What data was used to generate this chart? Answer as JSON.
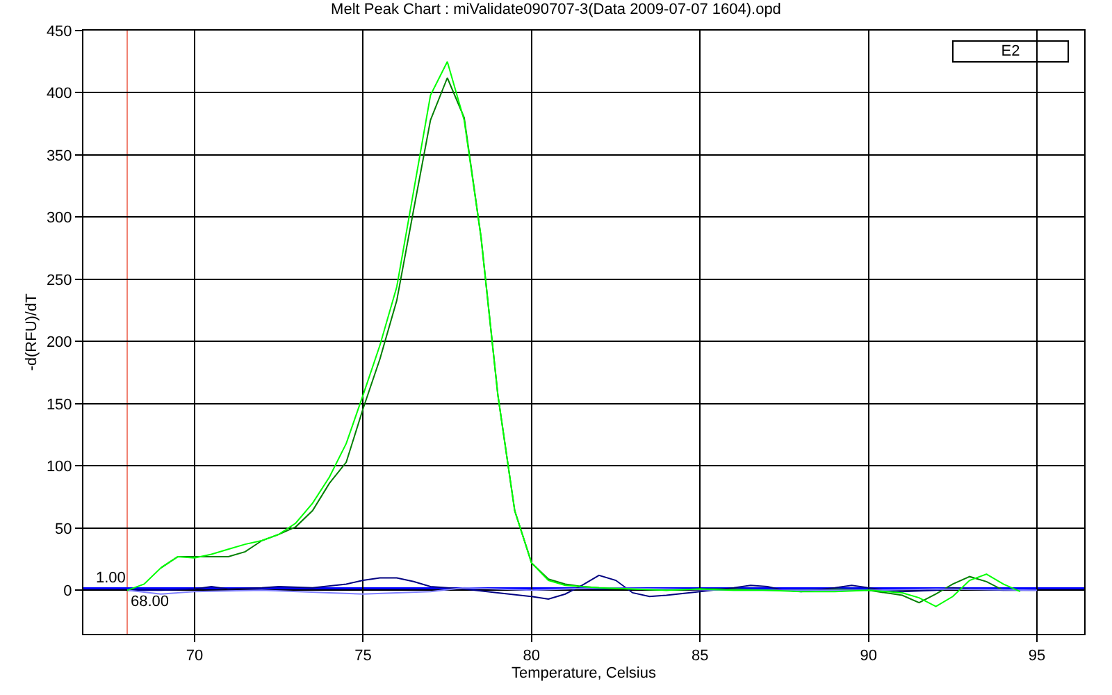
{
  "chart_data": {
    "type": "line",
    "title": "Melt Peak Chart : miValidate090707-3(Data 2009-07-07 1604).opd",
    "xlabel": "Temperature, Celsius",
    "ylabel": "-d(RFU)/dT",
    "annotations": [
      "E2"
    ],
    "xlim": [
      66.7,
      96.4
    ],
    "xticks": [
      70,
      75,
      80,
      85,
      90,
      95
    ],
    "ylim": [
      -35,
      450
    ],
    "yticks": [
      0,
      50,
      100,
      150,
      200,
      250,
      300,
      350,
      400,
      450
    ],
    "grid": true,
    "marker": "none",
    "line_style": "solid",
    "ref_lines": [
      {
        "axis": "x",
        "value": 68,
        "label": "68.00",
        "color": "#f08070"
      },
      {
        "axis": "y",
        "value": 1,
        "label": "1.00",
        "color": "#0000ff"
      }
    ],
    "series": [
      {
        "color": "#00ff00",
        "x": [
          68,
          68.5,
          69,
          69.5,
          70,
          70.5,
          71,
          71.5,
          72,
          72.5,
          73,
          73.5,
          74,
          74.5,
          75,
          75.5,
          76,
          76.5,
          77,
          77.5,
          78,
          78.5,
          79,
          79.5,
          80,
          80.5,
          81,
          81.5,
          82,
          83,
          84,
          85,
          86,
          87,
          88,
          89,
          90,
          91,
          91.5,
          92,
          92.5,
          93,
          93.5,
          94,
          94.5
        ],
        "values": [
          0,
          5,
          18,
          27,
          26,
          29,
          33,
          37,
          40,
          45,
          54,
          70,
          91,
          118,
          157,
          197,
          244,
          321,
          398,
          425,
          378,
          284,
          157,
          64,
          22,
          8,
          4,
          3,
          2,
          1,
          0,
          1,
          0,
          0,
          -1,
          -1,
          0,
          -2,
          -6,
          -13,
          -5,
          8,
          13,
          5,
          -1
        ]
      },
      {
        "color": "#008000",
        "x": [
          69,
          69.5,
          70,
          70.5,
          71,
          71.5,
          72,
          72.5,
          73,
          73.5,
          74,
          74.5,
          75,
          75.5,
          76,
          76.5,
          77,
          77.5,
          78,
          78.5,
          79,
          79.5,
          80,
          80.5,
          81,
          81.5,
          82,
          83,
          84,
          85,
          86,
          87,
          88,
          89,
          90,
          91,
          91.5,
          92,
          92.5,
          93,
          93.5,
          94
        ],
        "values": [
          18,
          27,
          27,
          27,
          27,
          31,
          40,
          45,
          51,
          64,
          86,
          103,
          146,
          186,
          233,
          306,
          378,
          412,
          380,
          284,
          157,
          64,
          22,
          9,
          5,
          3,
          2,
          1,
          0,
          1,
          1,
          0,
          0,
          1,
          0,
          -4,
          -10,
          -3,
          5,
          11,
          7,
          0
        ]
      },
      {
        "color": "#000080",
        "x": [
          68,
          69,
          70,
          70.5,
          71,
          72,
          72.5,
          73.5,
          74.5,
          75,
          75.5,
          76,
          76.5,
          77,
          78,
          79,
          80,
          80.5,
          81,
          81.5,
          82,
          82.5,
          83,
          83.5,
          84,
          85,
          86,
          86.5,
          87,
          87.5,
          88,
          89,
          89.5,
          90,
          90.5,
          91,
          92,
          92.5,
          93,
          94,
          95
        ],
        "values": [
          0,
          0,
          1,
          3,
          1,
          2,
          3,
          2,
          5,
          8,
          10,
          10,
          7,
          3,
          1,
          -2,
          -5,
          -7,
          -3,
          4,
          12,
          8,
          -2,
          -5,
          -4,
          -1,
          2,
          4,
          3,
          0,
          -1,
          2,
          4,
          2,
          0,
          -1,
          0,
          2,
          1,
          0,
          0
        ]
      },
      {
        "color": "#8080ff",
        "x": [
          68,
          69,
          70,
          72,
          74,
          75,
          76,
          77,
          78,
          80,
          82,
          84,
          86,
          88,
          90,
          92,
          95
        ],
        "values": [
          0,
          -3,
          -1,
          0,
          -2,
          -3,
          -2,
          -1,
          2,
          0,
          2,
          1,
          0,
          0,
          0,
          1,
          0
        ]
      }
    ]
  }
}
